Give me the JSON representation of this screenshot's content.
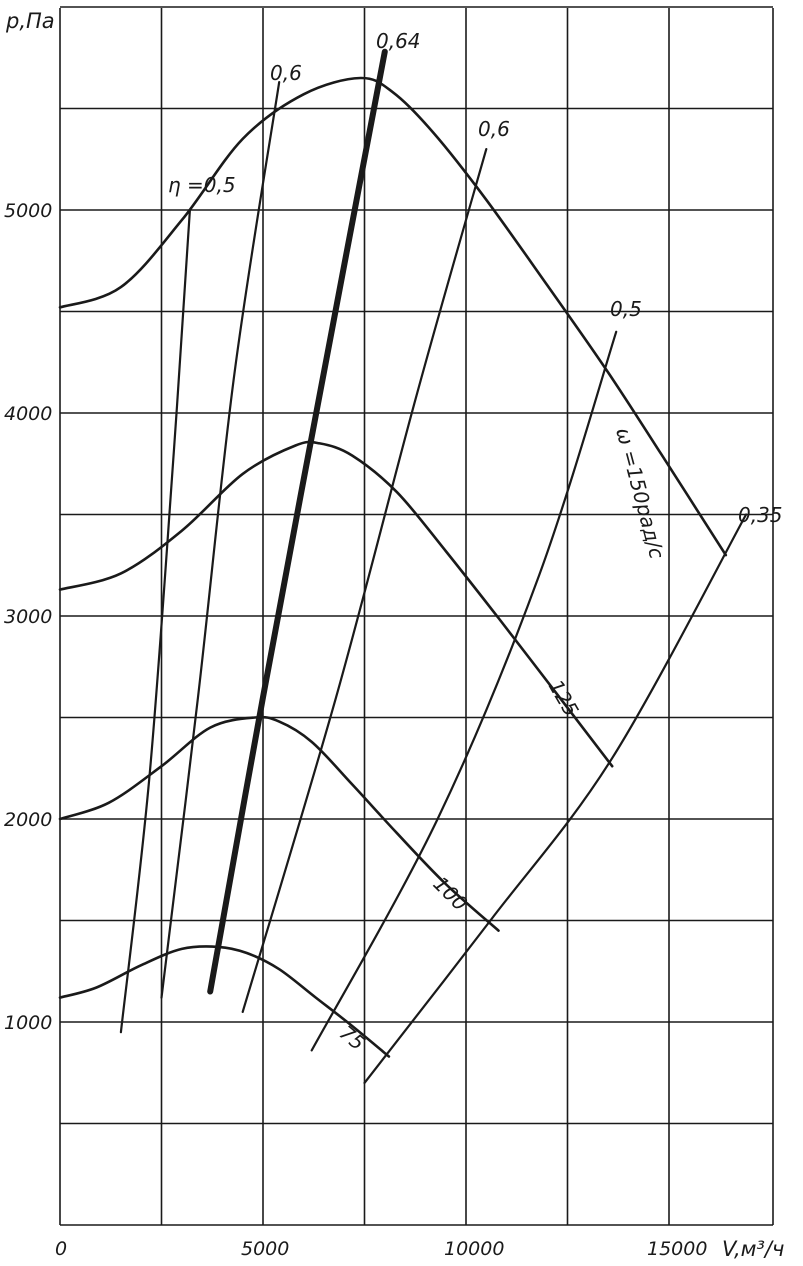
{
  "chart_data": {
    "type": "line",
    "xlabel": "V,м³/ч",
    "ylabel": "p,Па",
    "xlim": [
      0,
      17000
    ],
    "ylim": [
      0,
      6000
    ],
    "x_ticks": [
      0,
      5000,
      10000,
      15000
    ],
    "x_tick_labels": [
      "0",
      "5000",
      "10000",
      "15000"
    ],
    "y_ticks": [
      1000,
      2000,
      3000,
      4000,
      5000
    ],
    "y_tick_labels": [
      "1000",
      "2000",
      "3000",
      "4000",
      "5000"
    ],
    "grid": true,
    "pressure_series": [
      {
        "name": "ω=150рад/с",
        "x": [
          0,
          1500,
          3000,
          4500,
          6000,
          7400,
          8200,
          9200,
          10500,
          12000,
          13500,
          14800,
          16400
        ],
        "y": [
          4520,
          4620,
          4950,
          5350,
          5570,
          5650,
          5580,
          5380,
          5050,
          4630,
          4200,
          3800,
          3300
        ]
      },
      {
        "name": "125",
        "x": [
          0,
          1500,
          3000,
          4500,
          5800,
          6400,
          7200,
          8300,
          9500,
          10800,
          12300,
          13600
        ],
        "y": [
          3130,
          3210,
          3420,
          3700,
          3840,
          3850,
          3790,
          3610,
          3320,
          2990,
          2600,
          2260
        ]
      },
      {
        "name": "100",
        "x": [
          0,
          1200,
          2500,
          3700,
          4800,
          5400,
          6200,
          7200,
          8300,
          9500,
          10800
        ],
        "y": [
          2000,
          2080,
          2260,
          2450,
          2500,
          2480,
          2380,
          2170,
          1930,
          1680,
          1450
        ]
      },
      {
        "name": "75",
        "x": [
          0,
          900,
          2000,
          3000,
          3900,
          4600,
          5400,
          6300,
          7200,
          8100
        ],
        "y": [
          1120,
          1170,
          1280,
          1360,
          1370,
          1340,
          1260,
          1120,
          980,
          830
        ]
      }
    ],
    "efficiency_series": [
      {
        "name": "η=0,5",
        "x": [
          1500,
          2200,
          2800,
          3200
        ],
        "y": [
          950,
          2200,
          3800,
          5000
        ]
      },
      {
        "name": "0,6",
        "x": [
          2500,
          3400,
          4300,
          5400
        ],
        "y": [
          1120,
          2600,
          4200,
          5630
        ]
      },
      {
        "name": "0,64",
        "x": [
          3700,
          5000,
          6500,
          8000
        ],
        "y": [
          1150,
          2600,
          4200,
          5780
        ]
      },
      {
        "name": "0,6",
        "x": [
          4500,
          6800,
          8800,
          10500
        ],
        "y": [
          1050,
          2600,
          4100,
          5300
        ]
      },
      {
        "name": "0,5",
        "x": [
          6200,
          9300,
          11800,
          13700
        ],
        "y": [
          860,
          2000,
          3200,
          4400
        ]
      },
      {
        "name": "0,35",
        "x": [
          7500,
          10600,
          13600,
          16900
        ],
        "y": [
          700,
          1500,
          2300,
          3500
        ]
      }
    ],
    "curve_labels": {
      "eta": "η =0,5",
      "e1": "0,6",
      "e2": "0,64",
      "e3": "0,6",
      "e4": "0,5",
      "e5": "0,35",
      "w150": "ω =150рад/с",
      "w125": "125",
      "w100": "100",
      "w75": "75"
    }
  }
}
